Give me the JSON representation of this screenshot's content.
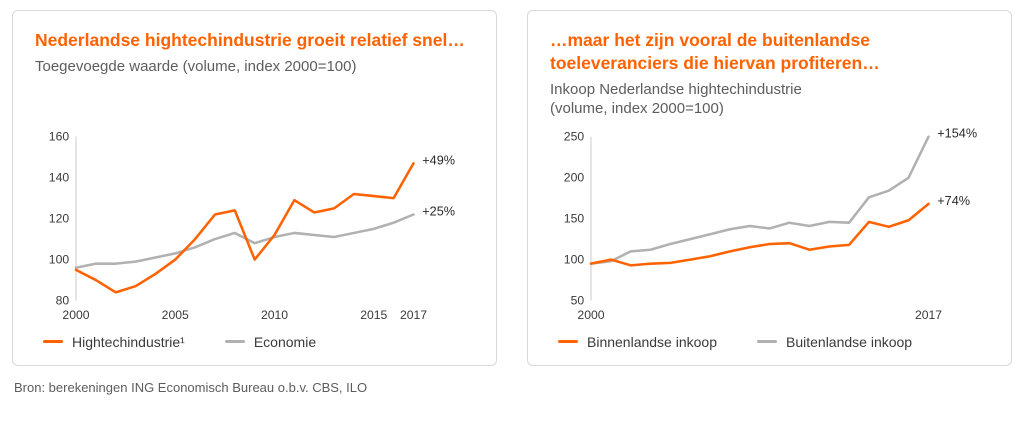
{
  "source_note": "Bron: berekeningen ING Economisch Bureau o.b.v. CBS, ILO",
  "colors": {
    "accent_orange": "#FF6200",
    "series_gray": "#b1b1b1",
    "axis_line": "#c9c9c9",
    "text_dark": "#3a3a3a",
    "text_muted": "#5d5d5d"
  },
  "chart_data": [
    {
      "type": "line",
      "title": "Nederlandse hightechindustrie groeit relatief snel…",
      "subtitle": "Toegevoegde waarde (volume, index 2000=100)",
      "x": [
        2000,
        2001,
        2002,
        2003,
        2004,
        2005,
        2006,
        2007,
        2008,
        2009,
        2010,
        2011,
        2012,
        2013,
        2014,
        2015,
        2016,
        2017
      ],
      "ylim": [
        80,
        160
      ],
      "yticks": [
        160,
        140,
        120,
        100,
        80
      ],
      "xticks": [
        2000,
        2005,
        2010,
        2015,
        2017
      ],
      "grid": false,
      "legend_position": "bottom",
      "series": [
        {
          "name": "Hightechindustrie¹",
          "color": "#FF6200",
          "end_label": "+49%",
          "values": [
            95,
            90,
            84,
            87,
            93,
            100,
            110,
            122,
            124,
            100,
            112,
            129,
            123,
            125,
            132,
            131,
            130,
            147
          ]
        },
        {
          "name": "Economie",
          "color": "#b1b1b1",
          "end_label": "+25%",
          "values": [
            96,
            98,
            98,
            99,
            101,
            103,
            106,
            110,
            113,
            108,
            111,
            113,
            112,
            111,
            113,
            115,
            118,
            122
          ]
        }
      ]
    },
    {
      "type": "line",
      "title": "…maar het zijn vooral de buitenlandse toeleveranciers die hiervan profiteren…",
      "subtitle": "Inkoop Nederlandse hightechindustrie (volume, index 2000=100)",
      "x": [
        2000,
        2001,
        2002,
        2003,
        2004,
        2005,
        2006,
        2007,
        2008,
        2009,
        2010,
        2011,
        2012,
        2013,
        2014,
        2015,
        2016,
        2017
      ],
      "ylim": [
        50,
        250
      ],
      "yticks": [
        250,
        200,
        150,
        100,
        50
      ],
      "xticks": [
        2000,
        2017
      ],
      "grid": false,
      "legend_position": "bottom",
      "series": [
        {
          "name": "Binnenlandse inkoop",
          "color": "#FF6200",
          "end_label": "+74%",
          "values": [
            95,
            100,
            93,
            95,
            96,
            100,
            104,
            110,
            115,
            119,
            120,
            112,
            116,
            118,
            146,
            140,
            148,
            168
          ]
        },
        {
          "name": "Buitenlandse inkoop",
          "color": "#b1b1b1",
          "end_label": "+154%",
          "values": [
            95,
            98,
            110,
            112,
            119,
            125,
            131,
            137,
            141,
            138,
            145,
            141,
            146,
            145,
            176,
            184,
            200,
            250
          ]
        }
      ]
    }
  ]
}
